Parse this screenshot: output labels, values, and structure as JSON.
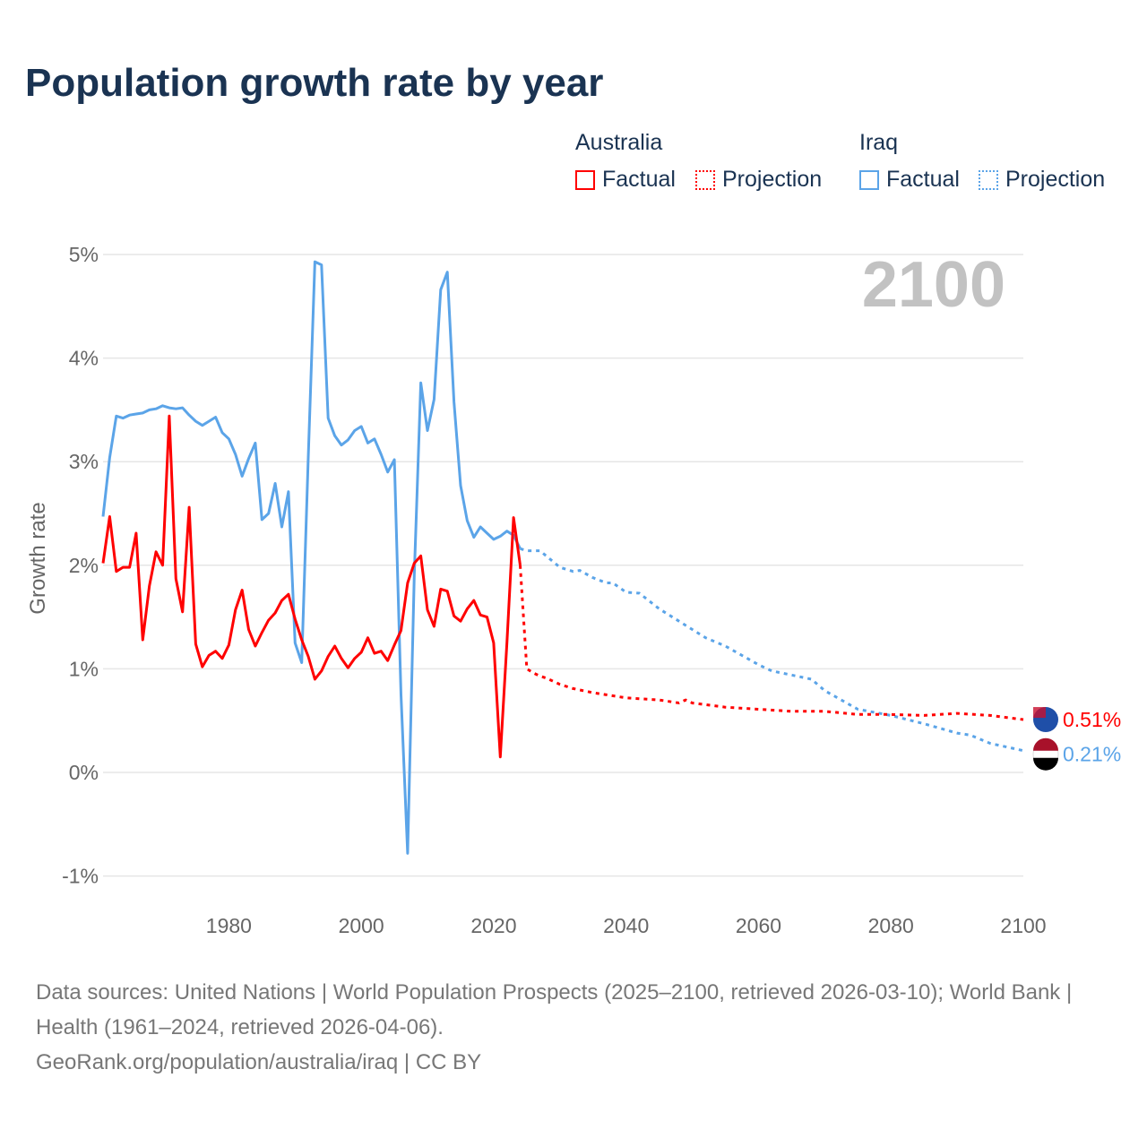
{
  "chart_data": {
    "type": "line",
    "title": "Population growth rate by year",
    "ylabel": "Growth rate",
    "xlabel": "",
    "xlim": [
      1961,
      2100
    ],
    "ylim": [
      -1,
      5
    ],
    "x_ticks": [
      "1980",
      "2000",
      "2020",
      "2040",
      "2060",
      "2080",
      "2100"
    ],
    "x_tick_values": [
      1980,
      2000,
      2020,
      2040,
      2060,
      2080,
      2100
    ],
    "y_ticks": [
      "5%",
      "4%",
      "3%",
      "2%",
      "1%",
      "0%",
      "-1%"
    ],
    "y_tick_values": [
      5,
      4,
      3,
      2,
      1,
      0,
      -1
    ],
    "year_label": "2100",
    "grid": true,
    "legend_placement": "top-right",
    "legend": {
      "groups": [
        {
          "name": "Australia",
          "factual": "Factual",
          "projection": "Projection"
        },
        {
          "name": "Iraq",
          "factual": "Factual",
          "projection": "Projection"
        }
      ]
    },
    "series": [
      {
        "name": "Australia",
        "color": "#ff0000",
        "end_label": "0.51%",
        "factual": {
          "x": [
            1961,
            1962,
            1963,
            1964,
            1965,
            1966,
            1967,
            1968,
            1969,
            1970,
            1971,
            1972,
            1973,
            1974,
            1975,
            1976,
            1977,
            1978,
            1979,
            1980,
            1981,
            1982,
            1983,
            1984,
            1985,
            1986,
            1987,
            1988,
            1989,
            1990,
            1991,
            1992,
            1993,
            1994,
            1995,
            1996,
            1997,
            1998,
            1999,
            2000,
            2001,
            2002,
            2003,
            2004,
            2005,
            2006,
            2007,
            2008,
            2009,
            2010,
            2011,
            2012,
            2013,
            2014,
            2015,
            2016,
            2017,
            2018,
            2019,
            2020,
            2021,
            2022,
            2023,
            2024
          ],
          "y": [
            2.02,
            2.47,
            1.94,
            1.98,
            1.98,
            2.31,
            1.28,
            1.8,
            2.13,
            2.0,
            3.44,
            1.87,
            1.55,
            2.56,
            1.24,
            1.02,
            1.13,
            1.17,
            1.1,
            1.23,
            1.57,
            1.76,
            1.38,
            1.22,
            1.35,
            1.47,
            1.54,
            1.66,
            1.72,
            1.48,
            1.28,
            1.12,
            0.9,
            0.98,
            1.12,
            1.22,
            1.1,
            1.01,
            1.1,
            1.16,
            1.3,
            1.15,
            1.17,
            1.08,
            1.23,
            1.37,
            1.83,
            2.02,
            2.09,
            1.57,
            1.41,
            1.77,
            1.75,
            1.51,
            1.46,
            1.58,
            1.66,
            1.52,
            1.5,
            1.25,
            0.15,
            1.25,
            2.46,
            2.0
          ]
        },
        "projection": {
          "x": [
            2024,
            2025,
            2026,
            2027,
            2028,
            2029,
            2030,
            2032,
            2035,
            2040,
            2045,
            2048,
            2049,
            2050,
            2055,
            2060,
            2065,
            2070,
            2075,
            2080,
            2085,
            2090,
            2095,
            2100
          ],
          "y": [
            2.0,
            1.0,
            0.96,
            0.93,
            0.91,
            0.88,
            0.85,
            0.81,
            0.77,
            0.72,
            0.7,
            0.67,
            0.7,
            0.67,
            0.63,
            0.61,
            0.59,
            0.59,
            0.56,
            0.56,
            0.55,
            0.57,
            0.55,
            0.51
          ]
        }
      },
      {
        "name": "Iraq",
        "color": "#5ba4e8",
        "end_label": "0.21%",
        "factual": {
          "x": [
            1961,
            1962,
            1963,
            1964,
            1965,
            1966,
            1967,
            1968,
            1969,
            1970,
            1971,
            1972,
            1973,
            1974,
            1975,
            1976,
            1977,
            1978,
            1979,
            1980,
            1981,
            1982,
            1983,
            1984,
            1985,
            1986,
            1987,
            1988,
            1989,
            1990,
            1991,
            1992,
            1993,
            1994,
            1995,
            1996,
            1997,
            1998,
            1999,
            2000,
            2001,
            2002,
            2003,
            2004,
            2005,
            2006,
            2007,
            2008,
            2009,
            2010,
            2011,
            2012,
            2013,
            2014,
            2015,
            2016,
            2017,
            2018,
            2019,
            2020,
            2021,
            2022,
            2023,
            2024
          ],
          "y": [
            2.47,
            3.04,
            3.44,
            3.42,
            3.45,
            3.46,
            3.47,
            3.5,
            3.51,
            3.54,
            3.52,
            3.51,
            3.52,
            3.45,
            3.39,
            3.35,
            3.39,
            3.43,
            3.28,
            3.22,
            3.07,
            2.86,
            3.03,
            3.18,
            2.44,
            2.5,
            2.79,
            2.37,
            2.71,
            1.25,
            1.06,
            3.04,
            4.93,
            4.9,
            3.42,
            3.25,
            3.16,
            3.21,
            3.3,
            3.34,
            3.18,
            3.22,
            3.07,
            2.9,
            3.02,
            0.75,
            -0.78,
            1.9,
            3.76,
            3.3,
            3.6,
            4.66,
            4.83,
            3.58,
            2.77,
            2.43,
            2.27,
            2.37,
            2.31,
            2.25,
            2.28,
            2.33,
            2.29,
            2.16
          ]
        },
        "projection": {
          "x": [
            2024,
            2025,
            2027,
            2030,
            2032,
            2033,
            2035,
            2037,
            2038,
            2040,
            2042,
            2045,
            2050,
            2052,
            2055,
            2060,
            2062,
            2065,
            2068,
            2070,
            2075,
            2080,
            2085,
            2090,
            2092,
            2095,
            2100
          ],
          "y": [
            2.16,
            2.14,
            2.14,
            1.98,
            1.94,
            1.95,
            1.88,
            1.83,
            1.83,
            1.74,
            1.73,
            1.58,
            1.38,
            1.3,
            1.22,
            1.04,
            0.98,
            0.94,
            0.9,
            0.79,
            0.61,
            0.55,
            0.47,
            0.38,
            0.36,
            0.28,
            0.21
          ]
        }
      }
    ]
  },
  "footer": {
    "line1": "Data sources: United Nations | World Population Prospects (2025–2100, retrieved 2026-03-10); World Bank | Health (1961–2024, retrieved 2026-04-06).",
    "line2": "GeoRank.org/population/australia/iraq | CC BY"
  }
}
